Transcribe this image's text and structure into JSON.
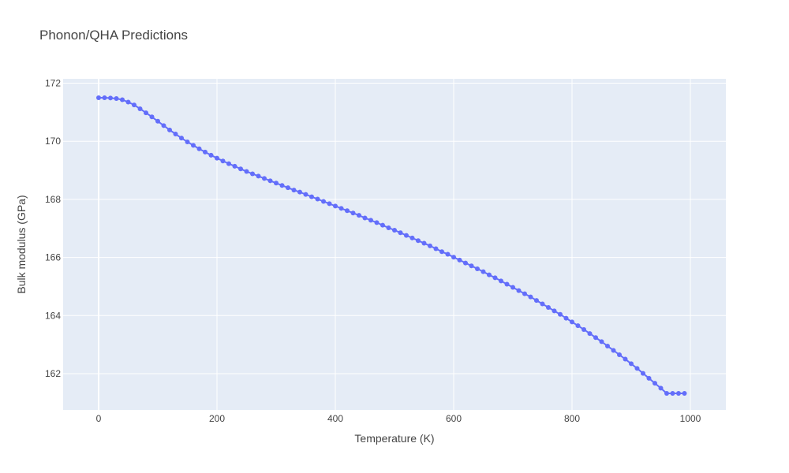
{
  "chart_data": {
    "type": "line",
    "mode": "lines+markers",
    "title": "Phonon/QHA Predictions",
    "xlabel": "Temperature (K)",
    "ylabel": "Bulk modulus (GPa)",
    "xlim": [
      -60,
      1060
    ],
    "ylim": [
      160.75,
      172.15
    ],
    "xticks": [
      0,
      200,
      400,
      600,
      800,
      1000
    ],
    "yticks": [
      162,
      164,
      166,
      168,
      170,
      172
    ],
    "grid": true,
    "legend": "none",
    "colors": {
      "series": "#636efa",
      "plot_bg": "#e5ecf6",
      "grid": "#ffffff",
      "text": "#444444"
    },
    "series": [
      {
        "x": [
          0,
          10,
          20,
          30,
          40,
          50,
          60,
          70,
          80,
          90,
          100,
          110,
          120,
          130,
          140,
          150,
          160,
          170,
          180,
          190,
          200,
          210,
          220,
          230,
          240,
          250,
          260,
          270,
          280,
          290,
          300,
          310,
          320,
          330,
          340,
          350,
          360,
          370,
          380,
          390,
          400,
          410,
          420,
          430,
          440,
          450,
          460,
          470,
          480,
          490,
          500,
          510,
          520,
          530,
          540,
          550,
          560,
          570,
          580,
          590,
          600,
          610,
          620,
          630,
          640,
          650,
          660,
          670,
          680,
          690,
          700,
          710,
          720,
          730,
          740,
          750,
          760,
          770,
          780,
          790,
          800,
          810,
          820,
          830,
          840,
          850,
          860,
          870,
          880,
          890,
          900,
          910,
          920,
          930,
          940,
          950,
          960,
          970,
          980,
          990
        ],
        "y": [
          171.5,
          171.5,
          171.49,
          171.47,
          171.43,
          171.35,
          171.25,
          171.12,
          170.98,
          170.84,
          170.69,
          170.54,
          170.39,
          170.25,
          170.11,
          169.98,
          169.86,
          169.74,
          169.63,
          169.52,
          169.42,
          169.32,
          169.23,
          169.14,
          169.05,
          168.96,
          168.88,
          168.8,
          168.72,
          168.64,
          168.56,
          168.48,
          168.4,
          168.32,
          168.25,
          168.17,
          168.09,
          168.01,
          167.93,
          167.85,
          167.77,
          167.69,
          167.61,
          167.53,
          167.45,
          167.36,
          167.28,
          167.2,
          167.11,
          167.02,
          166.94,
          166.85,
          166.76,
          166.67,
          166.58,
          166.49,
          166.4,
          166.3,
          166.2,
          166.11,
          166.01,
          165.91,
          165.81,
          165.71,
          165.61,
          165.51,
          165.4,
          165.3,
          165.19,
          165.08,
          164.97,
          164.86,
          164.75,
          164.64,
          164.52,
          164.4,
          164.28,
          164.16,
          164.04,
          163.91,
          163.78,
          163.65,
          163.52,
          163.38,
          163.24,
          163.1,
          162.95,
          162.8,
          162.65,
          162.5,
          162.34,
          162.18,
          162.01,
          161.84,
          161.67,
          161.5,
          161.32,
          161.32,
          161.32,
          161.32
        ]
      }
    ]
  }
}
